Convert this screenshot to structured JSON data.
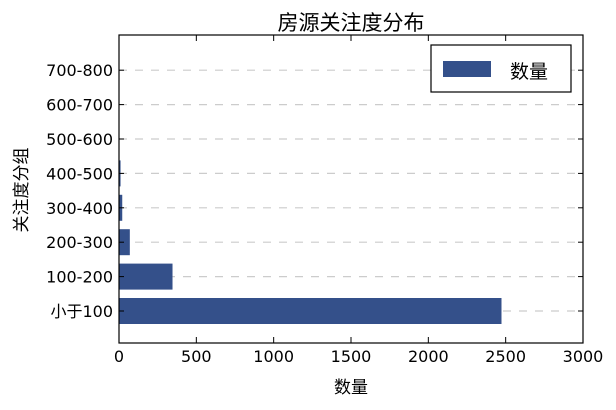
{
  "chart_data": {
    "type": "bar",
    "orientation": "horizontal",
    "title": "房源关注度分布",
    "xlabel": "数量",
    "ylabel": "关注度分组",
    "categories": [
      "小于100",
      "100-200",
      "200-300",
      "300-400",
      "400-500",
      "500-600",
      "600-700",
      "700-800"
    ],
    "series": [
      {
        "name": "数量",
        "values": [
          2473,
          346,
          70,
          21,
          10,
          2,
          0,
          0
        ]
      }
    ],
    "xlim": [
      0,
      3000
    ],
    "xticks": [
      0,
      500,
      1000,
      1500,
      2000,
      2500,
      3000
    ],
    "grid": "horizontal dashed",
    "legend_position": "top-right",
    "bar_color": "#34508a"
  }
}
